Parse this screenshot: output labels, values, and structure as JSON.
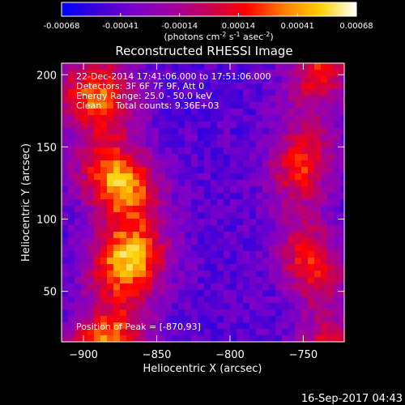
{
  "chart_data": {
    "type": "heatmap",
    "title": "Reconstructed RHESSI Image",
    "xlabel": "Heliocentric X (arcsec)",
    "ylabel": "Heliocentric Y (arcsec)",
    "xlim": [
      -915,
      -722
    ],
    "ylim": [
      15,
      208
    ],
    "xticks": [
      -900,
      -850,
      -800,
      -750
    ],
    "yticks": [
      50,
      100,
      150,
      200
    ],
    "colorbar": {
      "range": [
        -0.00068,
        0.00068
      ],
      "ticks": [
        "-0.00068",
        "-0.00041",
        "-0.00014",
        "0.00014",
        "0.00041",
        "0.00068"
      ],
      "units_prefix": "(photons cm",
      "units_exp1": "-2",
      "units_mid": " s",
      "units_exp2": "-1",
      "units_mid2": " asec",
      "units_exp3": "-2",
      "units_suffix": ")",
      "colors": [
        "#0000ff",
        "#3e00d9",
        "#7c00c8",
        "#a000a0",
        "#c80050",
        "#ff0000",
        "#ff7a00",
        "#ffd000",
        "#ffffff"
      ]
    },
    "annotations": [
      "22-Dec-2014 17:41:06.000 to 17:51:06.000",
      "Detectors: 3F 6F 7F 9F, Att 0",
      "Energy Range: 25.0 - 50.0 keV",
      "Clean     Total counts: 9.36E+03"
    ],
    "peak_label": "Position of Peak = [-870,93]",
    "peak_position": [
      -870,
      93
    ]
  },
  "footer": {
    "timestamp": "16-Sep-2017 04:43"
  }
}
